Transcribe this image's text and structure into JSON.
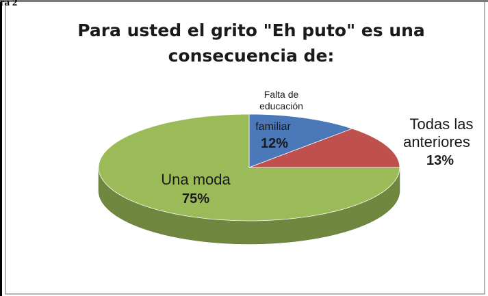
{
  "figure": {
    "corner_mark": "ra 2"
  },
  "chart_data": {
    "type": "pie",
    "title": [
      "Para usted el grito \"Eh puto\" es una",
      "consecuencia de:"
    ],
    "style": "3d",
    "slices": [
      {
        "label": [
          "Falta de",
          "educación",
          "familiar"
        ],
        "value": 12,
        "value_label": "12%",
        "color": "#4a78b8"
      },
      {
        "label": [
          "Todas las",
          "anteriores"
        ],
        "value": 13,
        "value_label": "13%",
        "color": "#c0504d"
      },
      {
        "label": [
          "Una moda"
        ],
        "value": 75,
        "value_label": "75%",
        "color": "#9bbb59"
      }
    ]
  }
}
